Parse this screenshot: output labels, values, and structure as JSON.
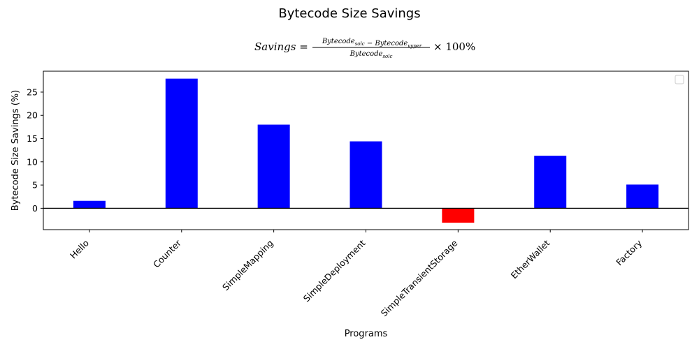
{
  "chart_data": {
    "type": "bar",
    "title": "Bytecode Size Savings",
    "subtitle": {
      "lhs": "Savings",
      "numerator_a": "Bytecode",
      "numerator_a_sub": "solc",
      "minus": "−",
      "numerator_b": "Bytecode",
      "numerator_b_sub": "vyper",
      "denominator": "Bytecode",
      "denominator_sub": "solc",
      "times": "×",
      "suffix": "100%"
    },
    "xlabel": "Programs",
    "ylabel": "Bytecode Size Savings (%)",
    "categories": [
      "Hello",
      "Counter",
      "SimpleMapping",
      "SimpleDeployment",
      "SimpleTransientStorage",
      "EtherWallet",
      "Factory"
    ],
    "values": [
      1.6,
      27.9,
      18.0,
      14.4,
      -3.1,
      11.3,
      5.1
    ],
    "bar_colors": [
      "#0000ff",
      "#0000ff",
      "#0000ff",
      "#0000ff",
      "#ff0000",
      "#0000ff",
      "#0000ff"
    ],
    "ylim": [
      -4.6,
      29.5
    ],
    "yticks": [
      0,
      5,
      10,
      15,
      20,
      25
    ],
    "zero_line": true,
    "legend": "upper right (empty)",
    "grid": false
  }
}
